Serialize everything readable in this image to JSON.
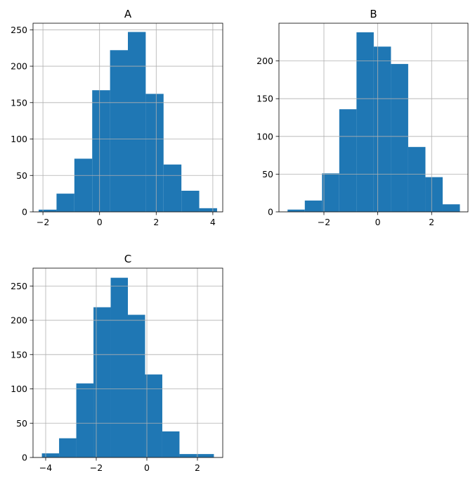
{
  "chart_data": [
    {
      "type": "bar",
      "title": "A",
      "xlim": [
        -2.35,
        4.35
      ],
      "ylim": [
        0,
        259
      ],
      "xticks": [
        -2,
        0,
        2,
        4
      ],
      "yticks": [
        0,
        50,
        100,
        150,
        200,
        250
      ],
      "grid": true,
      "color": "#1f77b4",
      "bin_edges": [
        -2.15,
        -1.52,
        -0.89,
        -0.26,
        0.37,
        1.0,
        1.63,
        2.26,
        2.89,
        3.52,
        4.15
      ],
      "values": [
        3,
        25,
        73,
        167,
        222,
        247,
        162,
        65,
        29,
        5
      ]
    },
    {
      "type": "bar",
      "title": "B",
      "xlim": [
        -3.67,
        3.35
      ],
      "ylim": [
        0,
        250
      ],
      "xticks": [
        -2,
        0,
        2
      ],
      "yticks": [
        0,
        50,
        100,
        150,
        200
      ],
      "grid": true,
      "color": "#1f77b4",
      "bin_edges": [
        -3.35,
        -2.71,
        -2.07,
        -1.43,
        -0.79,
        -0.15,
        0.49,
        1.13,
        1.77,
        2.41,
        3.05
      ],
      "values": [
        3,
        15,
        51,
        136,
        238,
        219,
        196,
        86,
        46,
        10
      ]
    },
    {
      "type": "bar",
      "title": "C",
      "xlim": [
        -4.5,
        3.0
      ],
      "ylim": [
        0,
        276
      ],
      "xticks": [
        -4,
        -2,
        0,
        2
      ],
      "yticks": [
        0,
        50,
        100,
        150,
        200,
        250
      ],
      "grid": true,
      "color": "#1f77b4",
      "bin_edges": [
        -4.15,
        -3.47,
        -2.79,
        -2.11,
        -1.43,
        -0.75,
        -0.07,
        0.61,
        1.29,
        1.97,
        2.65
      ],
      "values": [
        6,
        28,
        108,
        219,
        262,
        208,
        121,
        38,
        5,
        5
      ]
    }
  ]
}
